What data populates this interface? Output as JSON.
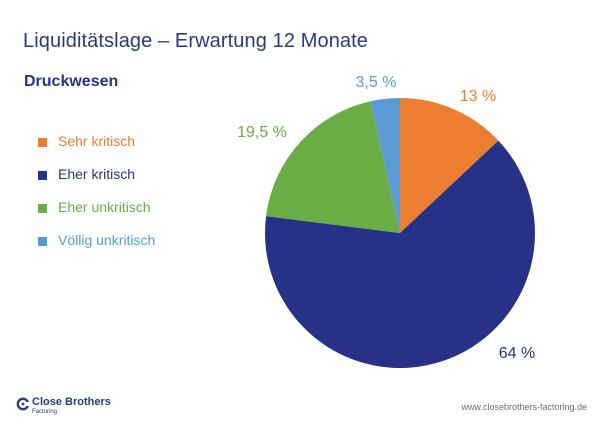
{
  "header": {
    "title": "Liquiditätslage – Erwartung 12 Monate",
    "subtitle": "Druckwesen"
  },
  "chart_data": {
    "type": "pie",
    "start_angle_deg": 0,
    "direction": "clockwise",
    "slices": [
      {
        "label": "Sehr kritisch",
        "value": 13,
        "display": "13 %",
        "color": "#ed7d31"
      },
      {
        "label": "Eher kritisch",
        "value": 64,
        "display": "64 %",
        "color": "#283188"
      },
      {
        "label": "Eher unkritisch",
        "value": 19.5,
        "display": "19,5 %",
        "color": "#6aad45"
      },
      {
        "label": "Völlig unkritisch",
        "value": 3.5,
        "display": "3,5 %",
        "color": "#5a9bd5"
      }
    ],
    "legend_position": "left"
  },
  "footer": {
    "brand_name": "Close Brothers",
    "brand_sub": "Factoring",
    "url": "www.closebrothers-factoring.de"
  },
  "colors": {
    "title": "#2b3a7a",
    "subtitle": "#283188",
    "logo": "#2b3a7a",
    "footer_text": "#6e6e6e"
  }
}
